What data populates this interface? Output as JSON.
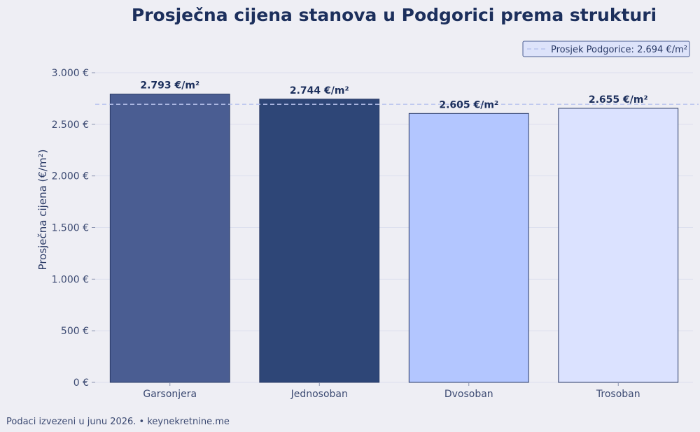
{
  "chart_data": {
    "type": "bar",
    "title": "Prosječna cijena stanova u Podgorici prema strukturi",
    "ylabel": "Prosječna cijena (€/m²)",
    "xlabel": "",
    "categories": [
      "Garsonjera",
      "Jednosoban",
      "Dvosoban",
      "Trosoban"
    ],
    "values": [
      2793,
      2744,
      2605,
      2655
    ],
    "value_labels": [
      "2.793 €/m²",
      "2.744 €/m²",
      "2.605 €/m²",
      "2.655 €/m²"
    ],
    "bar_colors": [
      "#4a5d92",
      "#2e4677",
      "#b3c6ff",
      "#dbe2ff"
    ],
    "ylim": [
      0,
      3000
    ],
    "yticks": [
      0,
      500,
      1000,
      1500,
      2000,
      2500,
      3000
    ],
    "ytick_labels": [
      "0 €",
      "500 €",
      "1.000 €",
      "1.500 €",
      "2.000 €",
      "2.500 €",
      "3.000 €"
    ],
    "reference_line": {
      "value": 2694,
      "label": "Prosjek Podgorice: 2.694 €/m²",
      "color": "#b9c4ee"
    },
    "legend_position": "top-right",
    "grid": "horizontal"
  },
  "footer": "Podaci izvezeni u junu 2026. • keynekretnine.me"
}
